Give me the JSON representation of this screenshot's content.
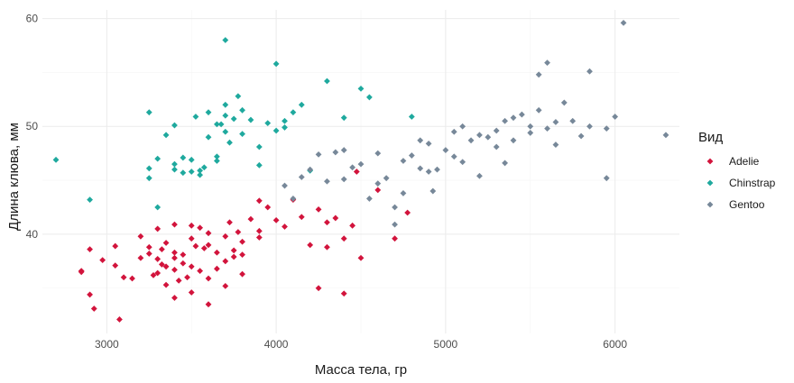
{
  "chart_data": {
    "type": "scatter",
    "title": "",
    "xlabel": "Масса тела, гр",
    "ylabel": "Длина клюва, мм",
    "xlim": [
      2620,
      6380
    ],
    "ylim": [
      30.8,
      60.8
    ],
    "x_ticks": [
      3000,
      4000,
      5000,
      6000
    ],
    "y_ticks": [
      40,
      50,
      60
    ],
    "x_tick_labels": [
      "3000",
      "4000",
      "5000",
      "6000"
    ],
    "y_tick_labels": [
      "40",
      "50",
      "60"
    ],
    "grid": true,
    "legend": {
      "title": "Вид",
      "placement": "right"
    },
    "marker": "diamond",
    "series": [
      {
        "name": "Adelie",
        "color": "#D2143C",
        "points": [
          [
            2850,
            36.5
          ],
          [
            2900,
            38.6
          ],
          [
            2900,
            34.4
          ],
          [
            2925,
            33.1
          ],
          [
            2975,
            37.6
          ],
          [
            3050,
            38.9
          ],
          [
            3050,
            37.1
          ],
          [
            3075,
            32.1
          ],
          [
            3150,
            35.9
          ],
          [
            3200,
            37.8
          ],
          [
            3200,
            39.8
          ],
          [
            3250,
            38.2
          ],
          [
            3250,
            38.8
          ],
          [
            3275,
            36.2
          ],
          [
            3300,
            37.7
          ],
          [
            3300,
            40.5
          ],
          [
            3300,
            36.4
          ],
          [
            3325,
            38.6
          ],
          [
            3350,
            35.3
          ],
          [
            3350,
            37.0
          ],
          [
            3350,
            39.2
          ],
          [
            3400,
            37.8
          ],
          [
            3400,
            36.7
          ],
          [
            3400,
            40.9
          ],
          [
            3400,
            34.1
          ],
          [
            3425,
            35.7
          ],
          [
            3450,
            38.1
          ],
          [
            3450,
            37.3
          ],
          [
            3475,
            36.0
          ],
          [
            3500,
            39.6
          ],
          [
            3500,
            40.8
          ],
          [
            3500,
            37.0
          ],
          [
            3500,
            34.6
          ],
          [
            3525,
            38.9
          ],
          [
            3550,
            36.6
          ],
          [
            3550,
            40.6
          ],
          [
            3575,
            38.7
          ],
          [
            3600,
            35.9
          ],
          [
            3600,
            39.0
          ],
          [
            3600,
            40.1
          ],
          [
            3650,
            38.3
          ],
          [
            3650,
            36.8
          ],
          [
            3700,
            39.8
          ],
          [
            3700,
            35.2
          ],
          [
            3700,
            37.5
          ],
          [
            3725,
            41.1
          ],
          [
            3750,
            38.5
          ],
          [
            3750,
            37.9
          ],
          [
            3775,
            40.2
          ],
          [
            3800,
            39.3
          ],
          [
            3800,
            36.3
          ],
          [
            3800,
            38.1
          ],
          [
            3850,
            41.4
          ],
          [
            3900,
            39.7
          ],
          [
            3900,
            40.3
          ],
          [
            3950,
            42.5
          ],
          [
            4000,
            41.3
          ],
          [
            4050,
            40.7
          ],
          [
            4100,
            43.2
          ],
          [
            4150,
            41.6
          ],
          [
            4200,
            39.0
          ],
          [
            4250,
            42.3
          ],
          [
            4300,
            41.1
          ],
          [
            4300,
            38.8
          ],
          [
            4350,
            41.5
          ],
          [
            4400,
            39.6
          ],
          [
            4450,
            40.8
          ],
          [
            4475,
            45.8
          ],
          [
            4500,
            37.8
          ],
          [
            4600,
            44.1
          ],
          [
            4700,
            39.6
          ],
          [
            4775,
            42.0
          ],
          [
            4250,
            35.0
          ],
          [
            4400,
            34.5
          ],
          [
            2850,
            36.6
          ],
          [
            3400,
            38.3
          ],
          [
            3100,
            36.0
          ],
          [
            3325,
            37.2
          ],
          [
            3600,
            33.5
          ],
          [
            3900,
            43.1
          ]
        ]
      },
      {
        "name": "Chinstrap",
        "color": "#1FA99E",
        "points": [
          [
            2700,
            46.9
          ],
          [
            2900,
            43.2
          ],
          [
            3250,
            45.2
          ],
          [
            3250,
            46.1
          ],
          [
            3300,
            47.0
          ],
          [
            3350,
            49.2
          ],
          [
            3400,
            46.5
          ],
          [
            3400,
            50.1
          ],
          [
            3450,
            45.7
          ],
          [
            3450,
            47.1
          ],
          [
            3500,
            45.8
          ],
          [
            3500,
            46.9
          ],
          [
            3525,
            50.9
          ],
          [
            3550,
            45.9
          ],
          [
            3575,
            46.2
          ],
          [
            3600,
            49.0
          ],
          [
            3600,
            51.3
          ],
          [
            3650,
            46.8
          ],
          [
            3650,
            47.2
          ],
          [
            3675,
            50.2
          ],
          [
            3700,
            49.5
          ],
          [
            3700,
            51.0
          ],
          [
            3700,
            52.0
          ],
          [
            3725,
            48.5
          ],
          [
            3750,
            50.7
          ],
          [
            3775,
            52.8
          ],
          [
            3800,
            49.3
          ],
          [
            3800,
            51.5
          ],
          [
            3850,
            50.6
          ],
          [
            3900,
            48.1
          ],
          [
            3950,
            50.3
          ],
          [
            4000,
            49.6
          ],
          [
            4050,
            50.5
          ],
          [
            4100,
            51.3
          ],
          [
            4150,
            52.0
          ],
          [
            4300,
            54.2
          ],
          [
            4400,
            50.8
          ],
          [
            4500,
            53.5
          ],
          [
            4550,
            52.7
          ],
          [
            4800,
            50.9
          ],
          [
            3250,
            51.3
          ],
          [
            3650,
            50.2
          ],
          [
            3700,
            58.0
          ],
          [
            4000,
            55.8
          ],
          [
            3400,
            46.0
          ],
          [
            3550,
            45.5
          ],
          [
            3900,
            46.4
          ],
          [
            3300,
            42.5
          ],
          [
            4050,
            49.9
          ],
          [
            4200,
            45.9
          ]
        ]
      },
      {
        "name": "Gentoo",
        "color": "#778899",
        "points": [
          [
            4050,
            44.5
          ],
          [
            4100,
            43.3
          ],
          [
            4150,
            45.3
          ],
          [
            4200,
            46.0
          ],
          [
            4250,
            47.4
          ],
          [
            4300,
            44.9
          ],
          [
            4350,
            47.6
          ],
          [
            4400,
            45.1
          ],
          [
            4450,
            46.2
          ],
          [
            4500,
            46.5
          ],
          [
            4550,
            43.3
          ],
          [
            4600,
            47.5
          ],
          [
            4650,
            45.2
          ],
          [
            4700,
            42.5
          ],
          [
            4750,
            46.8
          ],
          [
            4800,
            47.3
          ],
          [
            4850,
            46.1
          ],
          [
            4900,
            48.4
          ],
          [
            4950,
            46.0
          ],
          [
            5000,
            47.8
          ],
          [
            5050,
            49.5
          ],
          [
            5100,
            46.7
          ],
          [
            5150,
            48.7
          ],
          [
            5200,
            49.2
          ],
          [
            5250,
            49.0
          ],
          [
            5300,
            49.6
          ],
          [
            5350,
            50.5
          ],
          [
            5400,
            50.8
          ],
          [
            5450,
            51.1
          ],
          [
            5500,
            50.0
          ],
          [
            5550,
            51.5
          ],
          [
            5600,
            49.8
          ],
          [
            5650,
            50.4
          ],
          [
            5700,
            52.2
          ],
          [
            5750,
            50.5
          ],
          [
            5800,
            49.1
          ],
          [
            5850,
            55.1
          ],
          [
            5950,
            49.8
          ],
          [
            6000,
            50.9
          ],
          [
            6050,
            59.6
          ],
          [
            4400,
            47.8
          ],
          [
            4600,
            44.7
          ],
          [
            4750,
            43.8
          ],
          [
            4900,
            45.8
          ],
          [
            5050,
            47.2
          ],
          [
            5200,
            45.4
          ],
          [
            5300,
            48.1
          ],
          [
            5400,
            48.7
          ],
          [
            5500,
            49.4
          ],
          [
            5650,
            48.3
          ],
          [
            5600,
            55.9
          ],
          [
            5550,
            54.8
          ],
          [
            5850,
            50.0
          ],
          [
            6300,
            49.2
          ],
          [
            5950,
            45.2
          ],
          [
            4700,
            40.9
          ],
          [
            4925,
            44.0
          ],
          [
            5100,
            50.0
          ],
          [
            4850,
            48.7
          ],
          [
            5350,
            46.6
          ]
        ]
      }
    ]
  }
}
